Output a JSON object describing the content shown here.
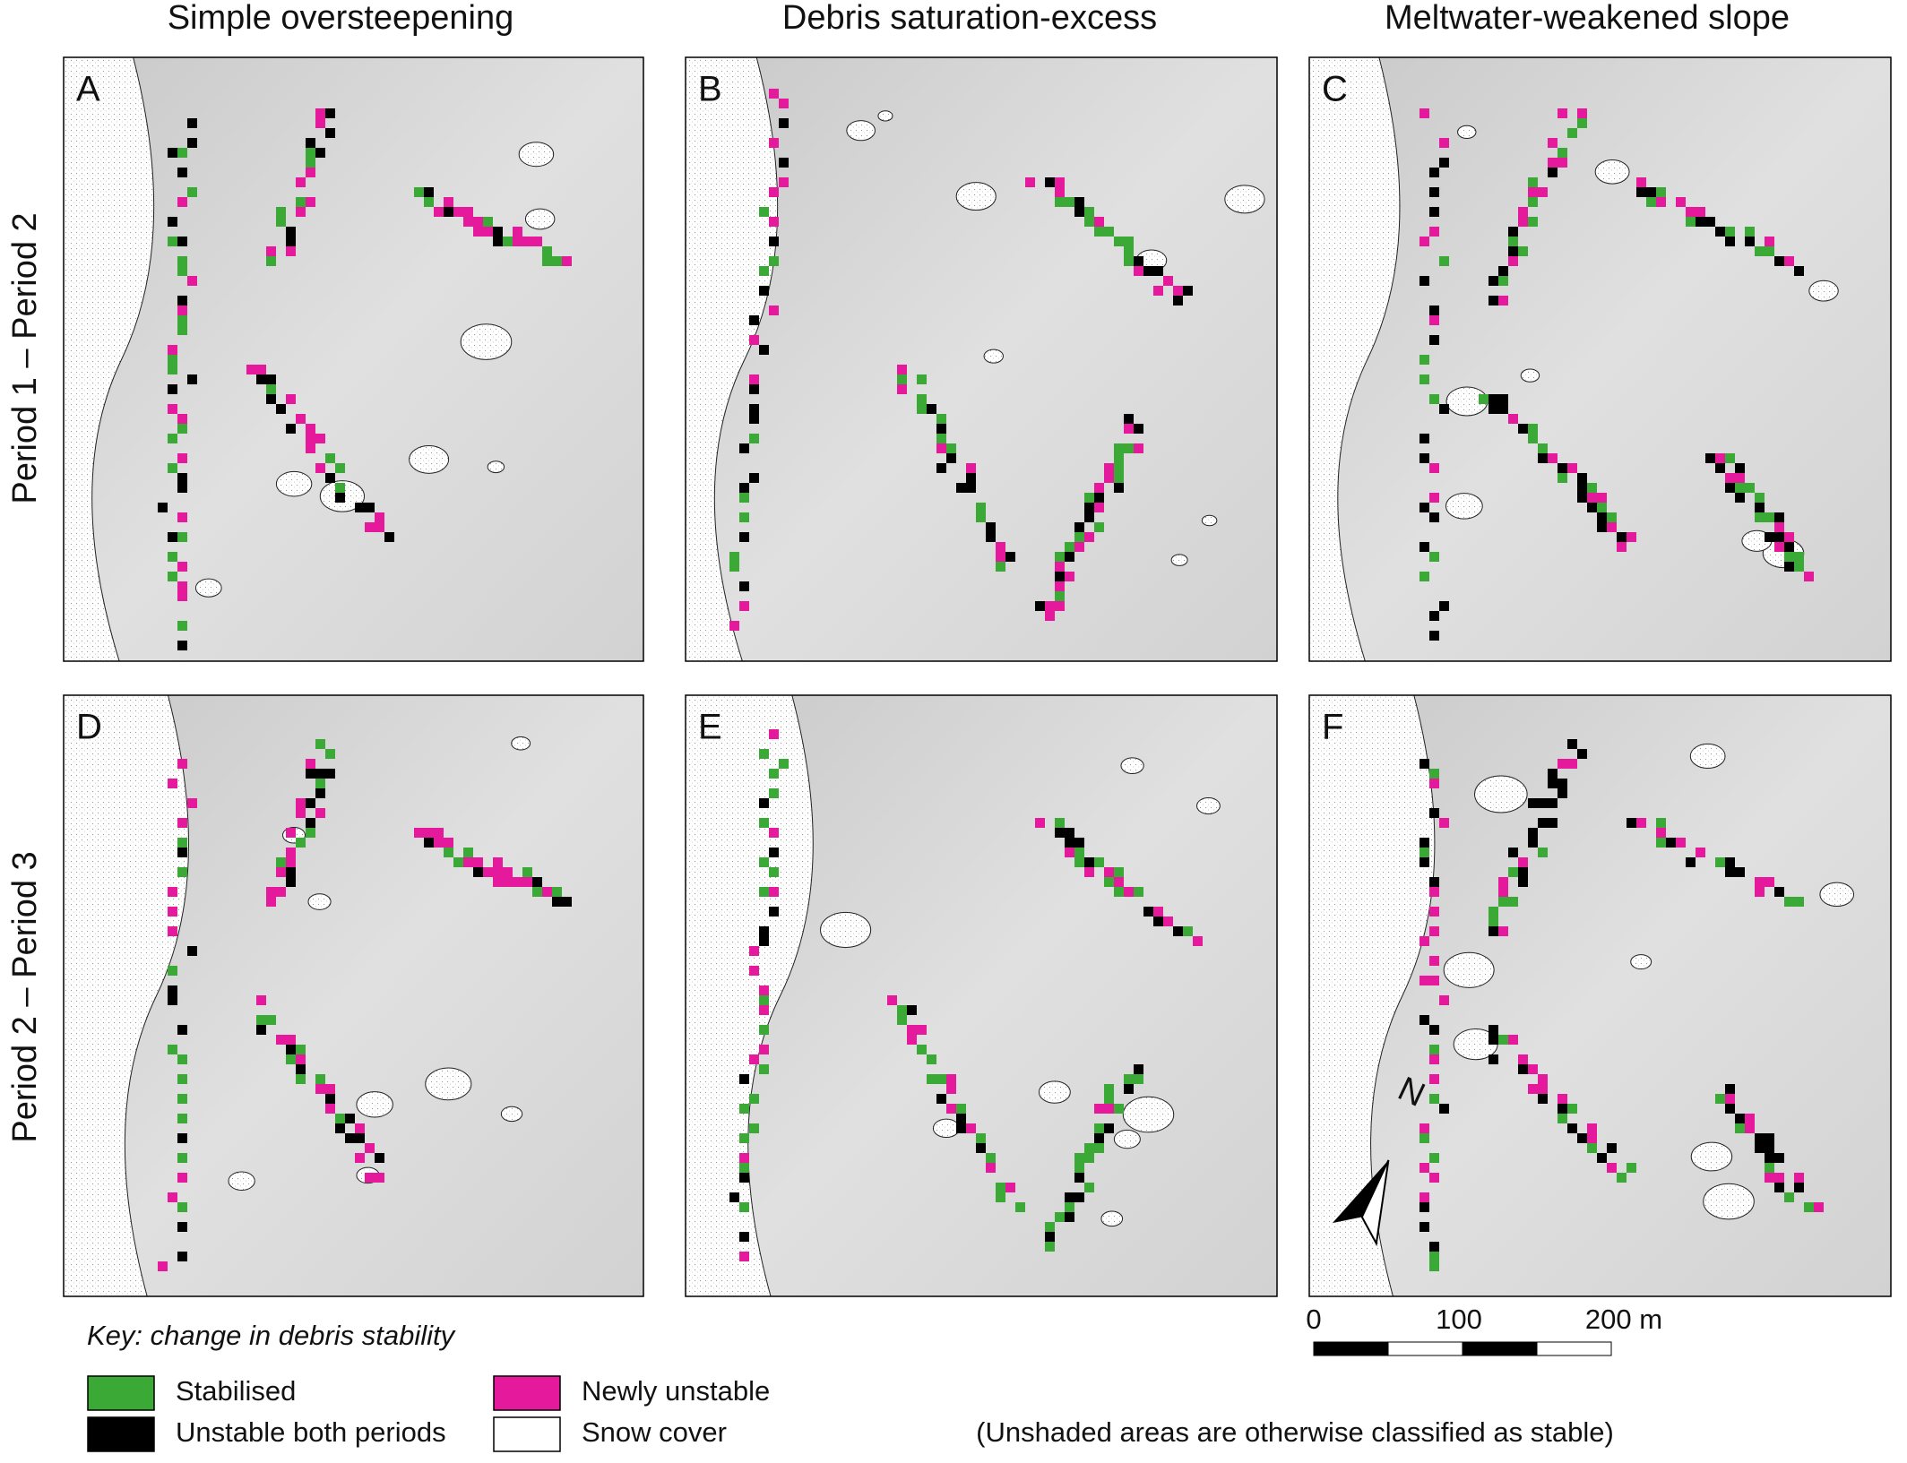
{
  "column_titles": [
    "Simple oversteepening",
    "Debris saturation-excess",
    "Meltwater-weakened slope"
  ],
  "row_labels": [
    "Period 1 – Period 2",
    "Period 2 – Period 3"
  ],
  "panels": [
    "A",
    "B",
    "C",
    "D",
    "E",
    "F"
  ],
  "key": {
    "title": "Key: change in debris stability",
    "entries": [
      {
        "label": "Stabilised",
        "color": "#3aa935"
      },
      {
        "label": "Unstable both periods",
        "color": "#000000"
      },
      {
        "label": "Newly unstable",
        "color": "#e4199b"
      },
      {
        "label": "Snow cover",
        "color": "#ffffff"
      }
    ]
  },
  "scale_bar": {
    "labels": [
      "0",
      "100",
      "200 m"
    ]
  },
  "north_label": "N",
  "note": "(Unshaded areas are otherwise classified as stable)"
}
